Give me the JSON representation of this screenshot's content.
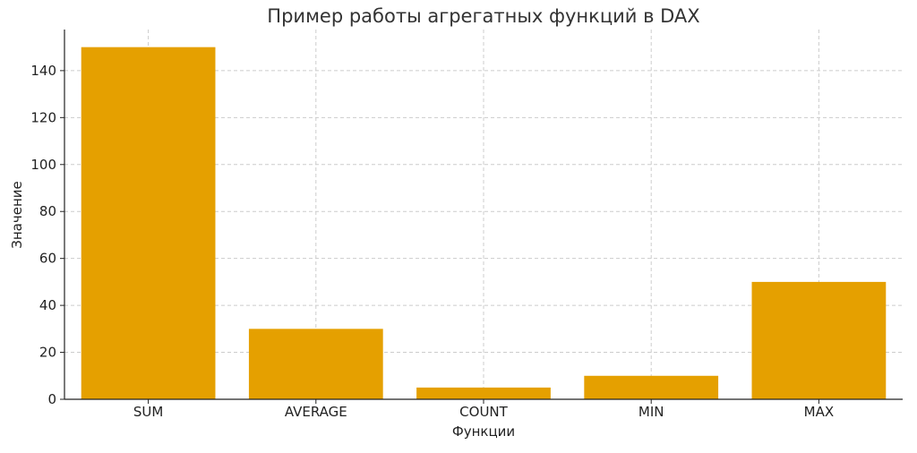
{
  "chart_data": {
    "type": "bar",
    "title": "Пример работы агрегатных функций в DAX",
    "xlabel": "Функции",
    "ylabel": "Значение",
    "categories": [
      "SUM",
      "AVERAGE",
      "COUNT",
      "MIN",
      "MAX"
    ],
    "values": [
      150,
      30,
      5,
      10,
      50
    ],
    "ylim": [
      0,
      157.5
    ],
    "yticks": [
      0,
      20,
      40,
      60,
      80,
      100,
      120,
      140
    ],
    "grid": true,
    "bar_color": "#E5A000"
  }
}
